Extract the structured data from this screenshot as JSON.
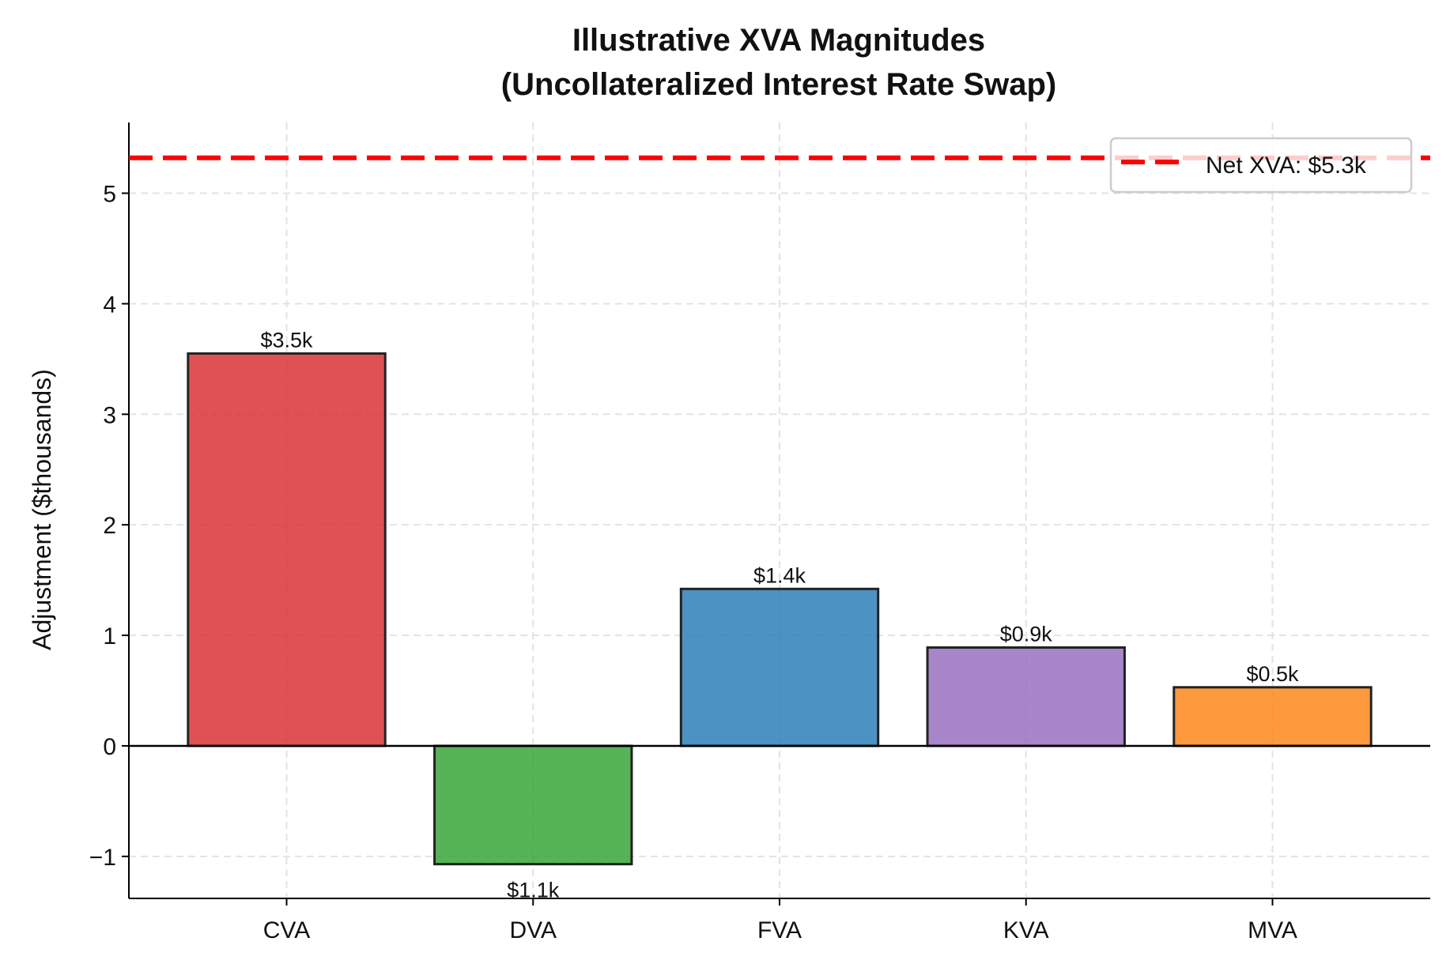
{
  "chart_data": {
    "type": "bar",
    "title": "Illustrative XVA Magnitudes",
    "subtitle": "(Uncollateralized Interest Rate Swap)",
    "xlabel": "",
    "ylabel": "Adjustment ($thousands)",
    "categories": [
      "CVA",
      "DVA",
      "FVA",
      "KVA",
      "MVA"
    ],
    "values": [
      3.55,
      -1.07,
      1.42,
      0.89,
      0.53
    ],
    "data_labels": [
      "$3.5k",
      "$1.1k",
      "$1.4k",
      "$0.9k",
      "$0.5k"
    ],
    "colors": [
      "#d62728",
      "#2ca02c",
      "#1f77b4",
      "#9467bd",
      "#ff7f0e"
    ],
    "bar_opacity": 0.8,
    "ylim": [
      -1.38,
      5.64
    ],
    "yticks": [
      -1,
      0,
      1,
      2,
      3,
      4,
      5
    ],
    "ytick_labels": [
      "−1",
      "0",
      "1",
      "2",
      "3",
      "4",
      "5"
    ],
    "grid": true,
    "reference_line": {
      "value": 5.32,
      "label": "Net XVA: $5.3k",
      "color": "#ff0000",
      "style": "dashed"
    },
    "legend_position": "top-right"
  }
}
